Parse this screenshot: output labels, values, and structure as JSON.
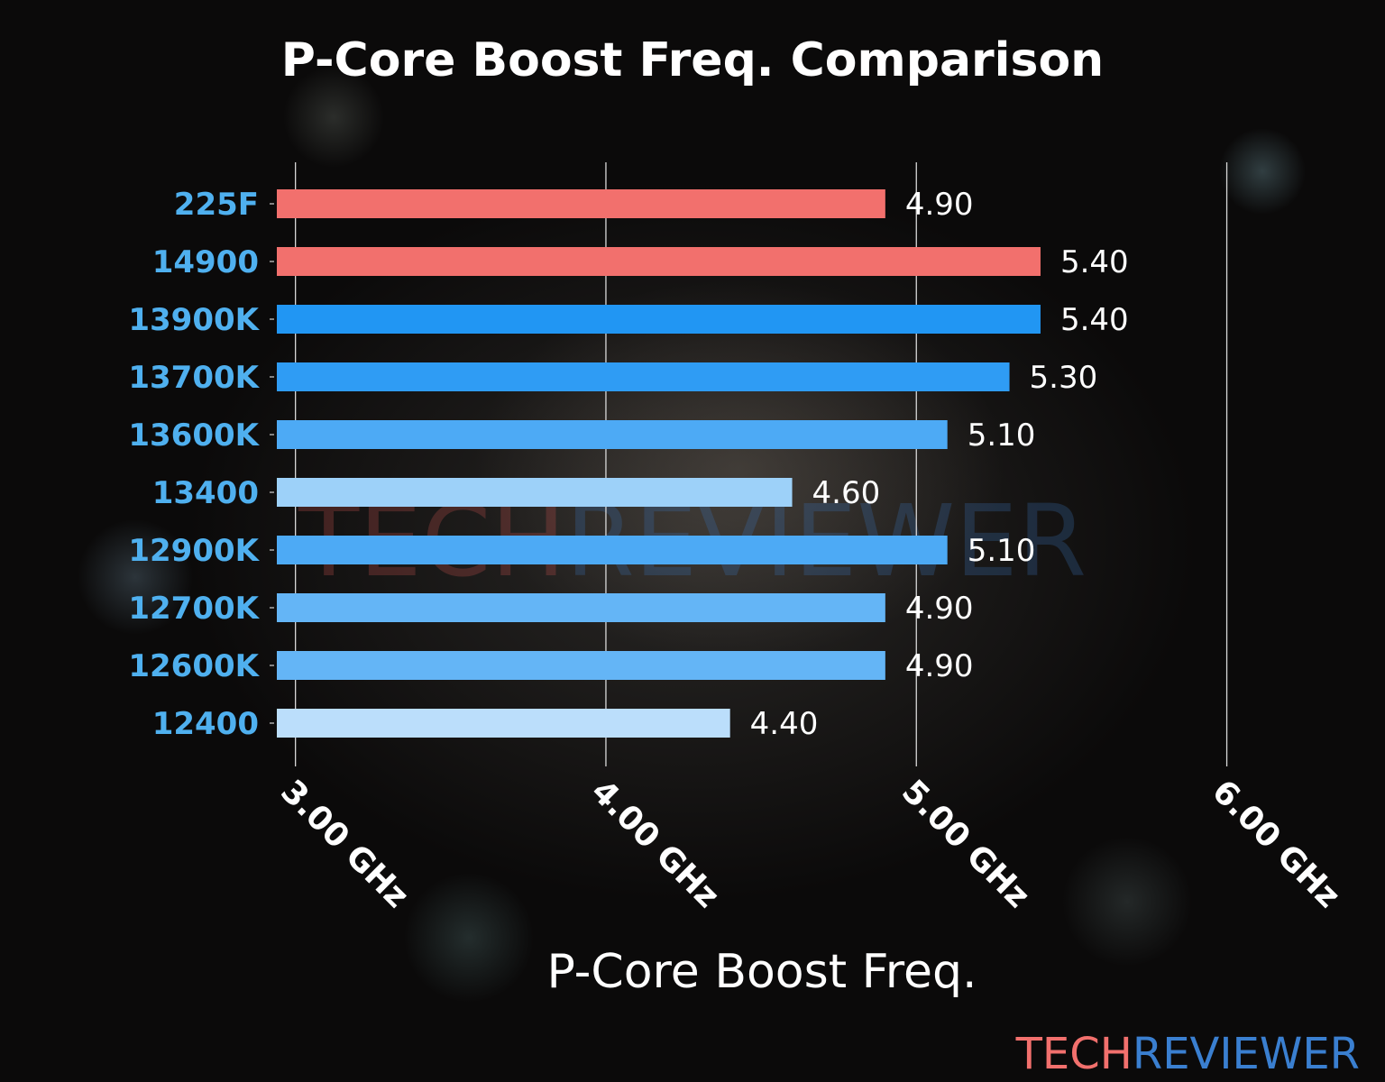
{
  "chart_data": {
    "type": "bar",
    "orientation": "horizontal",
    "title": "P-Core Boost Freq. Comparison",
    "xlabel": "P-Core Boost Freq.",
    "ylabel": "",
    "categories": [
      "225F",
      "14900",
      "13900K",
      "13700K",
      "13600K",
      "13400",
      "12900K",
      "12700K",
      "12600K",
      "12400"
    ],
    "values": [
      4.9,
      5.4,
      5.4,
      5.3,
      5.1,
      4.6,
      5.1,
      4.9,
      4.9,
      4.4
    ],
    "value_labels": [
      "4.90",
      "5.40",
      "5.40",
      "5.30",
      "5.10",
      "4.60",
      "5.10",
      "4.90",
      "4.90",
      "4.40"
    ],
    "colors": [
      "#f2706d",
      "#f2706d",
      "#2196f3",
      "#2f9cf4",
      "#4daaf5",
      "#9dd1f9",
      "#4daaf5",
      "#64b5f6",
      "#64b5f6",
      "#bbdefb"
    ],
    "xticks": [
      3.0,
      4.0,
      5.0,
      6.0
    ],
    "xtick_labels": [
      "3.00 GHz",
      "4.00 GHz",
      "5.00 GHz",
      "6.00 GHz"
    ],
    "xlim": [
      2.94,
      6.0
    ],
    "grid": "vertical",
    "category_label_color": "#4fb0ef"
  },
  "watermark": {
    "part1": "TECH",
    "part2": "REVIEWER",
    "color1": "#f2706d",
    "color2": "#3a7fd0"
  }
}
